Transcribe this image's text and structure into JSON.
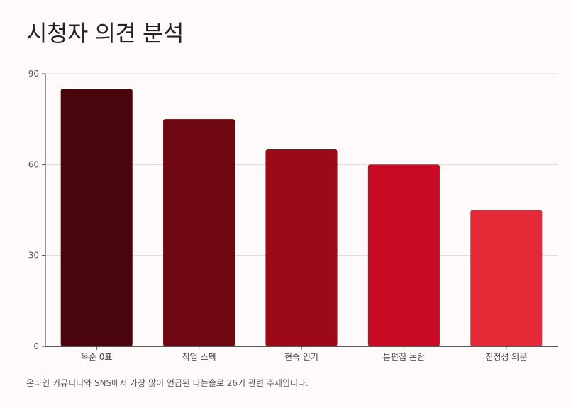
{
  "chart_data": {
    "type": "bar",
    "title": "시청자 의견 분석",
    "categories": [
      "옥순 0표",
      "직업 스펙",
      "현숙 인기",
      "통편집 논란",
      "진정성 의문"
    ],
    "values": [
      85,
      75,
      65,
      60,
      45
    ],
    "colors": [
      "#4a040c",
      "#700812",
      "#9c0a1a",
      "#c80a22",
      "#e52a37"
    ],
    "ylim": [
      0,
      90
    ],
    "yticks": [
      0,
      30,
      60,
      90
    ],
    "grid": true,
    "xlabel": "",
    "ylabel": "",
    "caption": "온라인 커뮤니티와 SNS에서 가장 많이 언급된 나는솔로 26기 관련 주제입니다."
  }
}
